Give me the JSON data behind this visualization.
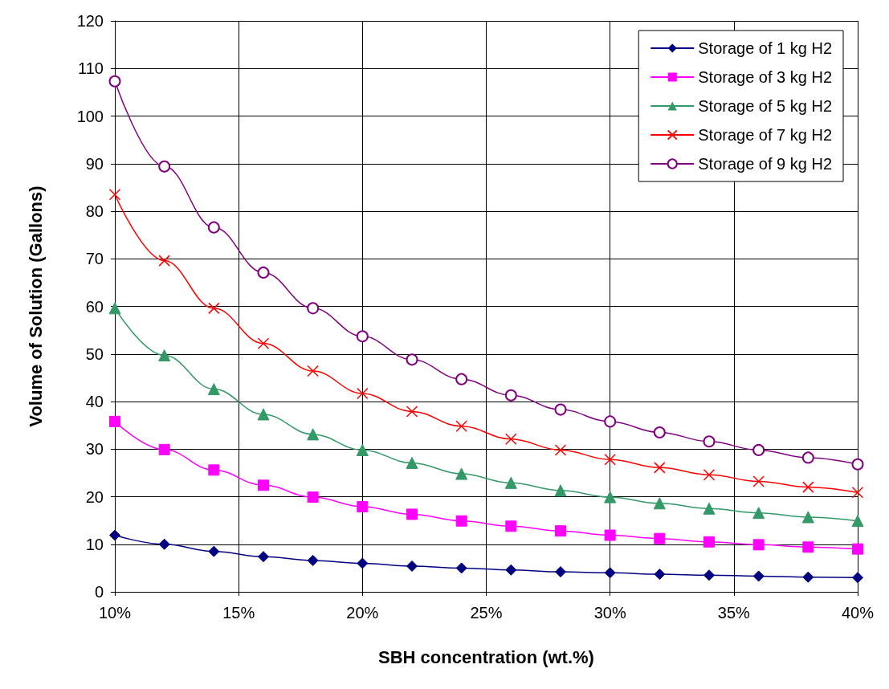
{
  "chart_data": {
    "type": "line",
    "xlabel": "SBH concentration (wt.%)",
    "ylabel": "Volume of Solution (Gallons)",
    "x": [
      10,
      12,
      14,
      16,
      18,
      20,
      22,
      24,
      26,
      28,
      30,
      32,
      34,
      36,
      38,
      40
    ],
    "xlim": [
      10,
      40
    ],
    "xticks": [
      {
        "value": 10,
        "label": "10%"
      },
      {
        "value": 15,
        "label": "15%"
      },
      {
        "value": 20,
        "label": "20%"
      },
      {
        "value": 25,
        "label": "25%"
      },
      {
        "value": 30,
        "label": "30%"
      },
      {
        "value": 35,
        "label": "35%"
      },
      {
        "value": 40,
        "label": "40%"
      }
    ],
    "ylim": [
      0,
      120
    ],
    "yticks": [
      0,
      10,
      20,
      30,
      40,
      50,
      60,
      70,
      80,
      90,
      100,
      110,
      120
    ],
    "grid": true,
    "legend": "top right",
    "series": [
      {
        "name": "Storage of 1 kg H2",
        "color": "#000080",
        "marker": "diamond",
        "values": [
          11.9,
          10,
          8.5,
          7.4,
          6.6,
          6,
          5.4,
          5,
          4.6,
          4.2,
          4,
          3.7,
          3.5,
          3.3,
          3.1,
          3
        ]
      },
      {
        "name": "Storage of 3 kg H2",
        "color": "#ff00ff",
        "marker": "square",
        "values": [
          35.8,
          29.9,
          25.6,
          22.4,
          19.9,
          17.9,
          16.3,
          14.9,
          13.8,
          12.8,
          11.9,
          11.2,
          10.5,
          9.9,
          9.4,
          9
        ]
      },
      {
        "name": "Storage of 5 kg H2",
        "color": "#339966",
        "marker": "triangle",
        "values": [
          59.6,
          49.7,
          42.6,
          37.3,
          33.1,
          29.8,
          27.1,
          24.8,
          22.9,
          21.3,
          19.9,
          18.6,
          17.5,
          16.6,
          15.7,
          14.9
        ]
      },
      {
        "name": "Storage of 7 kg H2",
        "color": "#ff0000",
        "marker": "cross",
        "values": [
          83.5,
          69.6,
          59.6,
          52.2,
          46.4,
          41.7,
          37.9,
          34.8,
          32.1,
          29.8,
          27.8,
          26.1,
          24.6,
          23.2,
          22,
          20.9
        ]
      },
      {
        "name": "Storage of 9 kg H2",
        "color": "#800080",
        "marker": "circle",
        "values": [
          107.3,
          89.4,
          76.6,
          67.1,
          59.6,
          53.7,
          48.8,
          44.7,
          41.3,
          38.3,
          35.8,
          33.5,
          31.6,
          29.8,
          28.2,
          26.8
        ]
      }
    ]
  }
}
